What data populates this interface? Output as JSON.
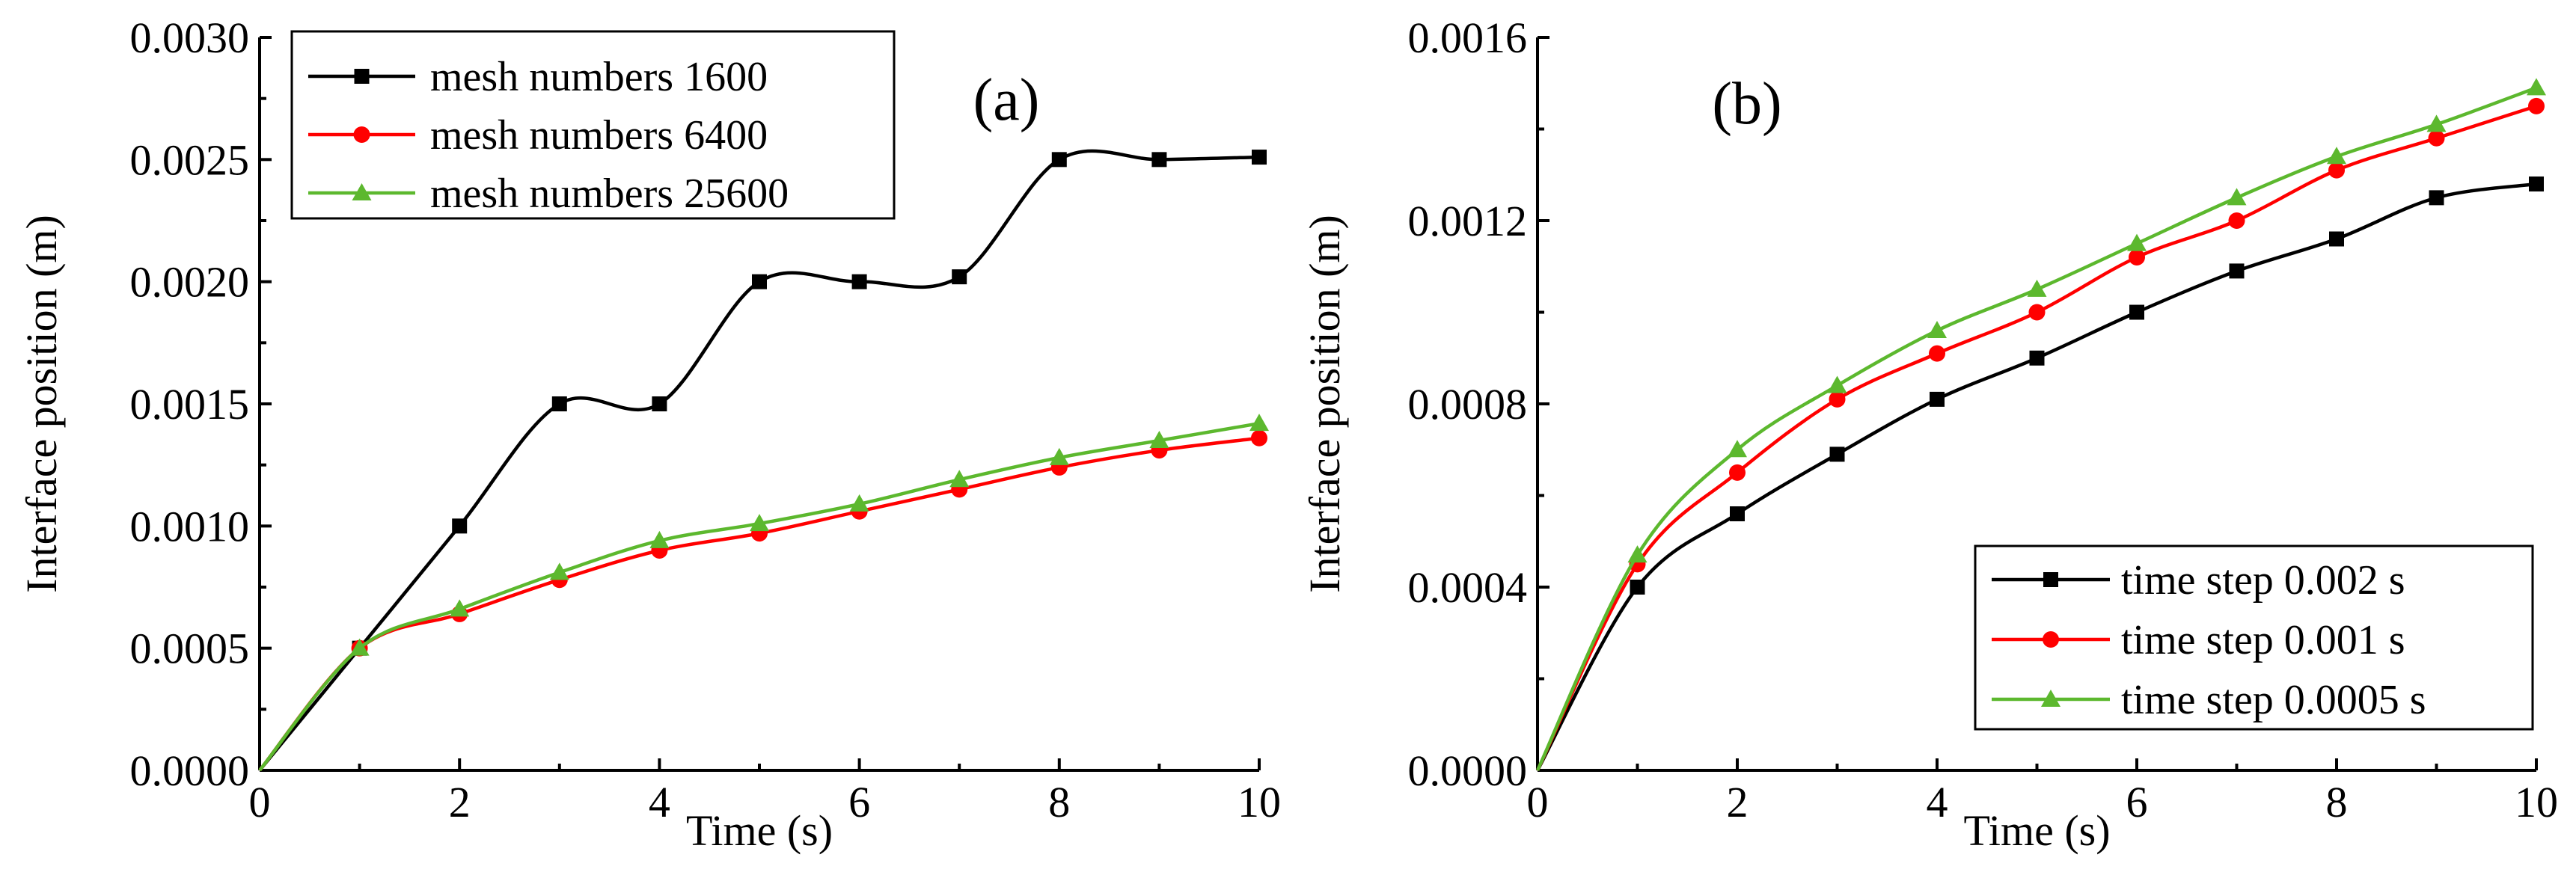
{
  "chart_data": [
    {
      "type": "line",
      "panel_label": "(a)",
      "xlabel": "Time (s)",
      "ylabel": "Interface position (m)",
      "xlim": [
        0,
        10
      ],
      "ylim": [
        0,
        0.003
      ],
      "xticks": [
        0,
        2,
        4,
        6,
        8,
        10
      ],
      "xtick_labels": [
        "0",
        "2",
        "4",
        "6",
        "8",
        "10"
      ],
      "yticks": [
        0,
        0.0005,
        0.001,
        0.0015,
        0.002,
        0.0025,
        0.003
      ],
      "ytick_labels": [
        "0.0000",
        "0.0005",
        "0.0010",
        "0.0015",
        "0.0020",
        "0.0025",
        "0.0030"
      ],
      "legend_position": "top-left",
      "series": [
        {
          "name": "mesh numbers 1600",
          "color": "#000000",
          "marker": "square",
          "x": [
            0,
            1,
            2,
            3,
            4,
            5,
            6,
            7,
            8,
            9,
            10
          ],
          "y": [
            0,
            0.0005,
            0.001,
            0.0015,
            0.0015,
            0.002,
            0.002,
            0.00202,
            0.0025,
            0.0025,
            0.00251
          ]
        },
        {
          "name": "mesh numbers 6400",
          "color": "#ff0000",
          "marker": "circle",
          "x": [
            0,
            1,
            2,
            3,
            4,
            5,
            6,
            7,
            8,
            9,
            10
          ],
          "y": [
            0,
            0.0005,
            0.00064,
            0.00078,
            0.0009,
            0.00097,
            0.00106,
            0.00115,
            0.00124,
            0.00131,
            0.00136
          ]
        },
        {
          "name": "mesh numbers 25600",
          "color": "#5cb82e",
          "marker": "triangle",
          "x": [
            0,
            1,
            2,
            3,
            4,
            5,
            6,
            7,
            8,
            9,
            10
          ],
          "y": [
            0,
            0.0005,
            0.00066,
            0.00081,
            0.00094,
            0.00101,
            0.00109,
            0.00119,
            0.00128,
            0.00135,
            0.00142
          ]
        }
      ]
    },
    {
      "type": "line",
      "panel_label": "(b)",
      "xlabel": "Time (s)",
      "ylabel": "Interface position (m)",
      "xlim": [
        0,
        10
      ],
      "ylim": [
        0,
        0.0016
      ],
      "xticks": [
        0,
        2,
        4,
        6,
        8,
        10
      ],
      "xtick_labels": [
        "0",
        "2",
        "4",
        "6",
        "8",
        "10"
      ],
      "yticks": [
        0,
        0.0004,
        0.0008,
        0.0012,
        0.0016
      ],
      "ytick_labels": [
        "0.0000",
        "0.0004",
        "0.0008",
        "0.0012",
        "0.0016"
      ],
      "legend_position": "bottom-right",
      "series": [
        {
          "name": "time step 0.002 s",
          "color": "#000000",
          "marker": "square",
          "x": [
            0,
            1,
            2,
            3,
            4,
            5,
            6,
            7,
            8,
            9,
            10
          ],
          "y": [
            0,
            0.0004,
            0.00056,
            0.00069,
            0.00081,
            0.0009,
            0.001,
            0.00109,
            0.00116,
            0.00125,
            0.00128
          ]
        },
        {
          "name": "time step 0.001 s",
          "color": "#ff0000",
          "marker": "circle",
          "x": [
            0,
            1,
            2,
            3,
            4,
            5,
            6,
            7,
            8,
            9,
            10
          ],
          "y": [
            0,
            0.00045,
            0.00065,
            0.00081,
            0.00091,
            0.001,
            0.00112,
            0.0012,
            0.00131,
            0.00138,
            0.00145
          ]
        },
        {
          "name": "time step 0.0005 s",
          "color": "#5cb82e",
          "marker": "triangle",
          "x": [
            0,
            1,
            2,
            3,
            4,
            5,
            6,
            7,
            8,
            9,
            10
          ],
          "y": [
            0,
            0.00047,
            0.0007,
            0.00084,
            0.00096,
            0.00105,
            0.00115,
            0.00125,
            0.00134,
            0.00141,
            0.00149
          ]
        }
      ]
    }
  ]
}
